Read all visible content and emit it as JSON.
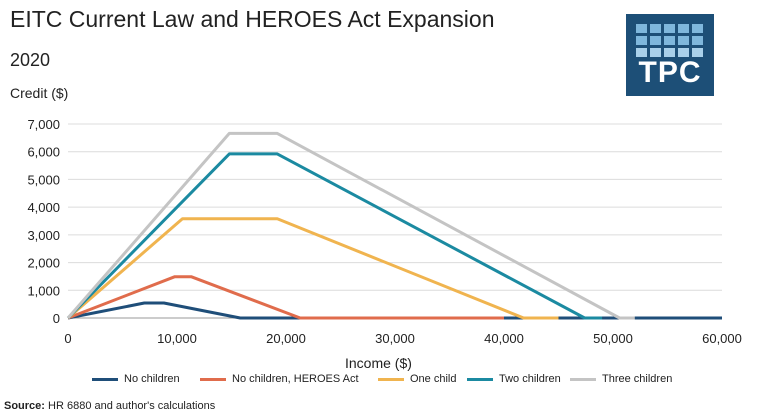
{
  "chart_data": {
    "type": "line",
    "title": "EITC Current Law and HEROES Act Expansion",
    "subtitle": "2020",
    "ylabel": "Credit ($)",
    "xlabel": "Income ($)",
    "xlim": [
      0,
      60000
    ],
    "ylim": [
      0,
      7000
    ],
    "x_ticks": [
      0,
      10000,
      20000,
      30000,
      40000,
      50000,
      60000
    ],
    "x_tick_labels": [
      "0",
      "10,000",
      "20,000",
      "30,000",
      "40,000",
      "50,000",
      "60,000"
    ],
    "y_ticks": [
      0,
      1000,
      2000,
      3000,
      4000,
      5000,
      6000,
      7000
    ],
    "y_tick_labels": [
      "0",
      "1,000",
      "2,000",
      "3,000",
      "4,000",
      "5,000",
      "6,000",
      "7,000"
    ],
    "grid": "horizontal",
    "legend": "bottom",
    "series": [
      {
        "name": "No children",
        "color": "#1f4e79",
        "points": [
          [
            0,
            0
          ],
          [
            7000,
            540
          ],
          [
            8800,
            540
          ],
          [
            15800,
            0
          ],
          [
            57000,
            0
          ],
          [
            60000,
            0
          ]
        ]
      },
      {
        "name": "No children, HEROES Act",
        "color": "#e06c4c",
        "points": [
          [
            0,
            0
          ],
          [
            9800,
            1490
          ],
          [
            11300,
            1490
          ],
          [
            21300,
            0
          ],
          [
            40000,
            0
          ]
        ]
      },
      {
        "name": "One child",
        "color": "#f0b44f",
        "points": [
          [
            0,
            0
          ],
          [
            10500,
            3580
          ],
          [
            19200,
            3580
          ],
          [
            41800,
            0
          ],
          [
            45000,
            0
          ]
        ]
      },
      {
        "name": "Two children",
        "color": "#1b8aa1",
        "points": [
          [
            0,
            0
          ],
          [
            14800,
            5920
          ],
          [
            19200,
            5920
          ],
          [
            47400,
            0
          ],
          [
            49000,
            0
          ]
        ]
      },
      {
        "name": "Three children",
        "color": "#c4c4c4",
        "points": [
          [
            0,
            0
          ],
          [
            14800,
            6660
          ],
          [
            19200,
            6660
          ],
          [
            50600,
            0
          ],
          [
            52000,
            0
          ]
        ]
      }
    ]
  },
  "source": {
    "label": "Source:",
    "text": " HR 6880 and author's calculations"
  },
  "logo": {
    "text": "TPC"
  }
}
